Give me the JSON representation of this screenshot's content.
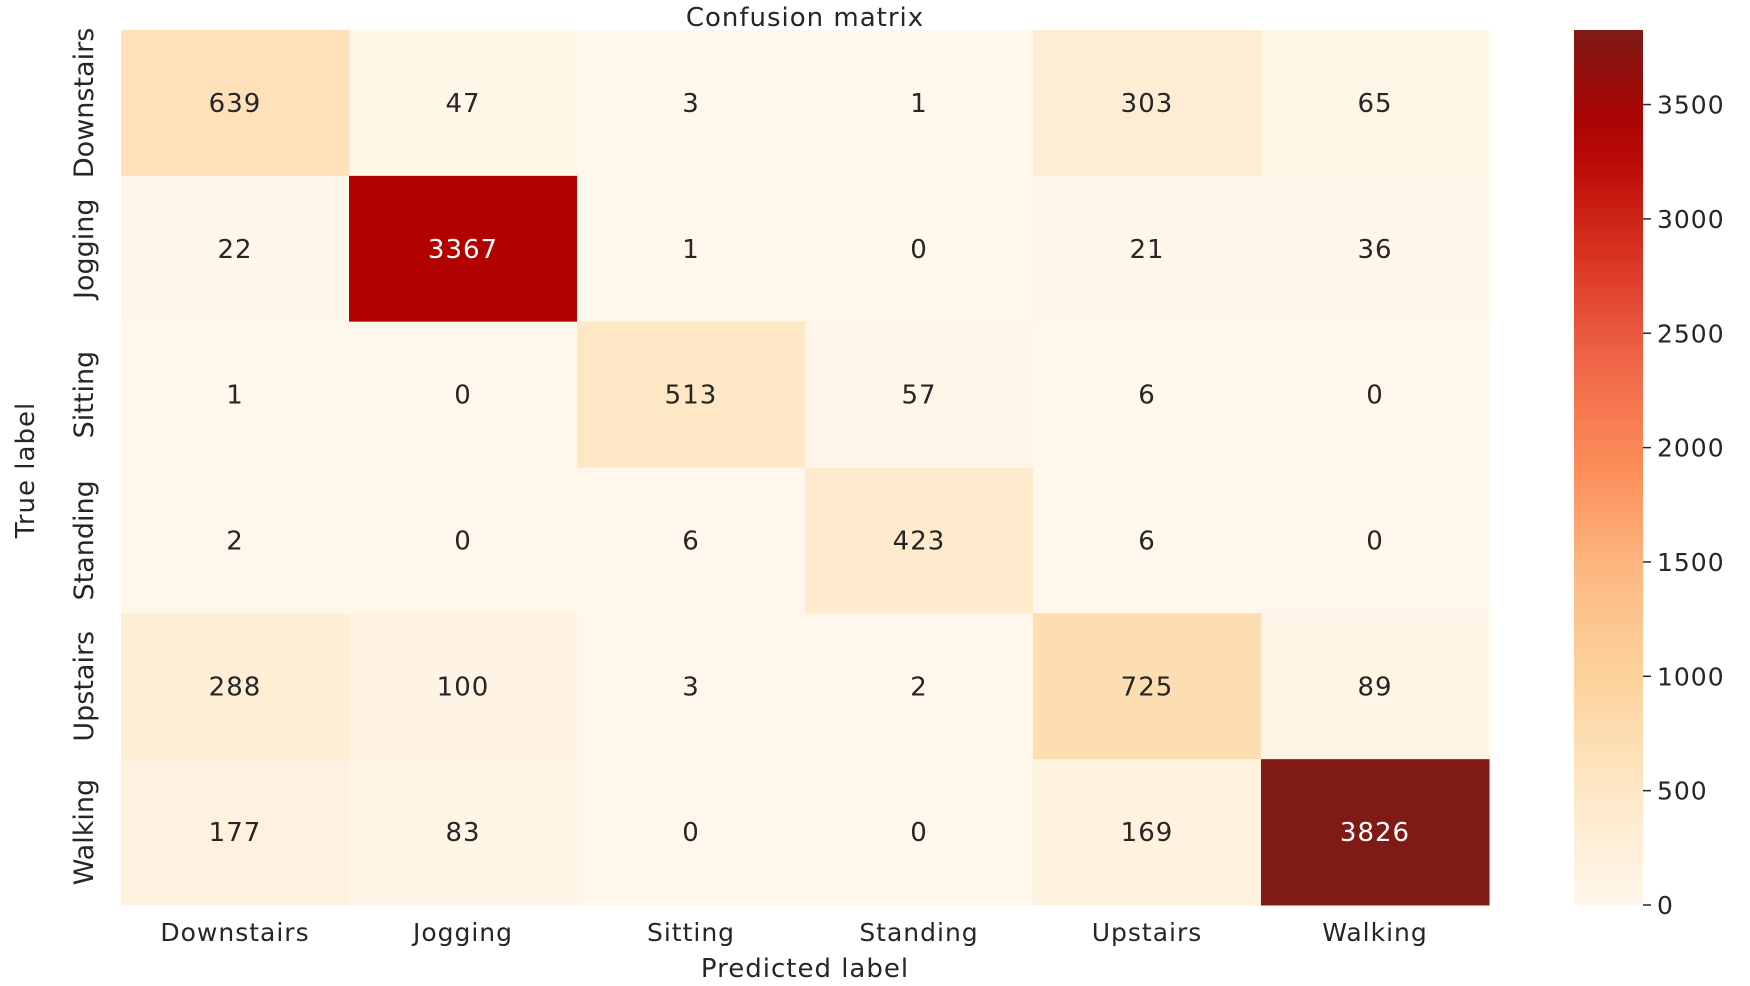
{
  "chart_data": {
    "type": "heatmap",
    "title": "Confusion matrix",
    "xlabel": "Predicted label",
    "ylabel": "True label",
    "x_categories": [
      "Downstairs",
      "Jogging",
      "Sitting",
      "Standing",
      "Upstairs",
      "Walking"
    ],
    "y_categories": [
      "Downstairs",
      "Jogging",
      "Sitting",
      "Standing",
      "Upstairs",
      "Walking"
    ],
    "values": [
      [
        639,
        47,
        3,
        1,
        303,
        65
      ],
      [
        22,
        3367,
        1,
        0,
        21,
        36
      ],
      [
        1,
        0,
        513,
        57,
        6,
        0
      ],
      [
        2,
        0,
        6,
        423,
        6,
        0
      ],
      [
        288,
        100,
        3,
        2,
        725,
        89
      ],
      [
        177,
        83,
        0,
        0,
        169,
        3826
      ]
    ],
    "colormap": "OrRd",
    "colorbar": {
      "range": [
        0,
        3826
      ],
      "ticks": [
        0,
        500,
        1000,
        1500,
        2000,
        2500,
        3000,
        3500
      ],
      "tick_labels": [
        "0",
        "500",
        "1000",
        "1500",
        "2000",
        "2500",
        "3000",
        "3500"
      ]
    },
    "colors": {
      "low": "#fff7ec",
      "high": "#7f1a16",
      "text_dark": "#262626",
      "text_light": "#ffffff"
    }
  }
}
